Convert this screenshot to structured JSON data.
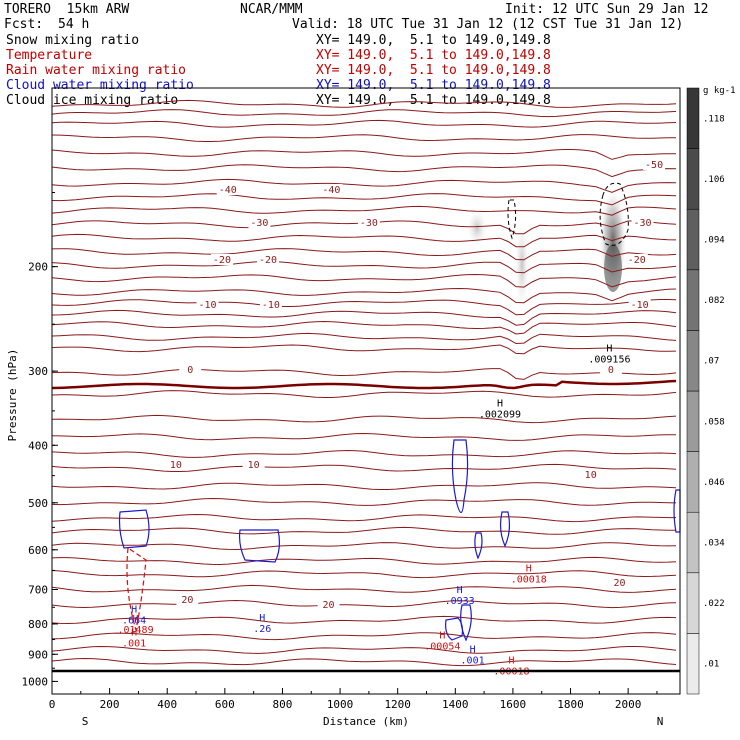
{
  "header": {
    "model": "TORERO  15km ARW",
    "center": "NCAR/MMM",
    "init": "Init: 12 UTC Sun 29 Jan 12",
    "fcst_label": "Fcst:",
    "fcst_value": "54 h",
    "valid": "Valid: 18 UTC Tue 31 Jan 12 (12 CST Tue 31 Jan 12)"
  },
  "legend": [
    {
      "label": "Snow mixing ratio",
      "xy": "XY= 149.0,  5.1 to 149.0,149.8",
      "color": "#000000"
    },
    {
      "label": "Temperature",
      "xy": "XY= 149.0,  5.1 to 149.0,149.8",
      "color": "#c00000"
    },
    {
      "label": "Rain water mixing ratio",
      "xy": "XY= 149.0,  5.1 to 149.0,149.8",
      "color": "#c00000"
    },
    {
      "label": "Cloud water mixing ratio",
      "xy": "XY= 149.0,  5.1 to 149.0,149.8",
      "color": "#1010c0"
    },
    {
      "label": "Cloud ice mixing ratio",
      "xy": "XY= 149.0,  5.1 to 149.0,149.8",
      "color": "#000000"
    }
  ],
  "colorbar": {
    "unit": "g kg-1",
    "labels": [
      ".01",
      ".022",
      ".034",
      ".046",
      ".058",
      ".07",
      ".082",
      ".094",
      ".106",
      ".118"
    ]
  },
  "chart_data": {
    "type": "contour",
    "xlabel": "Distance (km)",
    "ylabel": "Pressure (hPa)",
    "x_ticks": [
      0,
      200,
      400,
      600,
      800,
      1000,
      1200,
      1400,
      1600,
      1800,
      2000
    ],
    "y_ticks": [
      200,
      300,
      400,
      500,
      600,
      700,
      800,
      900,
      1000
    ],
    "xlim": [
      0,
      2180
    ],
    "ylim_top_bottom": [
      100,
      1050
    ],
    "y_scale": "log",
    "left_end_label": "S",
    "right_end_label": "N",
    "temperature_contours": [
      {
        "value": -50,
        "label": "-50",
        "at": [
          [
            2090,
            165
          ]
        ]
      },
      {
        "value": -40,
        "label": "-40",
        "at": [
          [
            610,
            190
          ],
          [
            970,
            190
          ]
        ]
      },
      {
        "value": -30,
        "label": "-30",
        "at": [
          [
            720,
            223
          ],
          [
            1100,
            223
          ],
          [
            2050,
            223
          ]
        ]
      },
      {
        "value": -20,
        "label": "-20",
        "at": [
          [
            590,
            260
          ],
          [
            750,
            260
          ],
          [
            2030,
            260
          ]
        ]
      },
      {
        "value": -10,
        "label": "-10",
        "at": [
          [
            540,
            305
          ],
          [
            760,
            305
          ],
          [
            2040,
            305
          ]
        ]
      },
      {
        "value": 0,
        "label": "0",
        "at": [
          [
            480,
            370
          ],
          [
            1940,
            370
          ]
        ]
      },
      {
        "value": 10,
        "label": "10",
        "at": [
          [
            430,
            465
          ],
          [
            700,
            465
          ],
          [
            1870,
            475
          ]
        ]
      },
      {
        "value": 20,
        "label": "20",
        "at": [
          [
            470,
            600
          ],
          [
            960,
            605
          ],
          [
            1970,
            583
          ]
        ]
      }
    ],
    "maxima": [
      {
        "field": "snow",
        "label": ".002099",
        "km": 1555,
        "hpa": 358
      },
      {
        "field": "snow",
        "label": ".009156",
        "km": 1935,
        "hpa": 289
      },
      {
        "field": "rain",
        "label": ".00018",
        "km": 1655,
        "hpa": 678
      },
      {
        "field": "rain",
        "label": ".00054",
        "km": 1355,
        "hpa": 880
      },
      {
        "field": "rain",
        "label": ".00018",
        "km": 1595,
        "hpa": 969
      },
      {
        "field": "rain",
        "label": ".01489",
        "km": 290,
        "hpa": 825
      },
      {
        "field": "rain",
        "label": ".001",
        "km": 285,
        "hpa": 870
      },
      {
        "field": "cloud_water",
        "label": ".0933",
        "km": 1415,
        "hpa": 738
      },
      {
        "field": "cloud_water",
        "label": ".664",
        "km": 285,
        "hpa": 795
      },
      {
        "field": "cloud_water",
        "label": ".26",
        "km": 730,
        "hpa": 822
      },
      {
        "field": "cloud_water",
        "label": ".001",
        "km": 1460,
        "hpa": 930
      }
    ]
  }
}
